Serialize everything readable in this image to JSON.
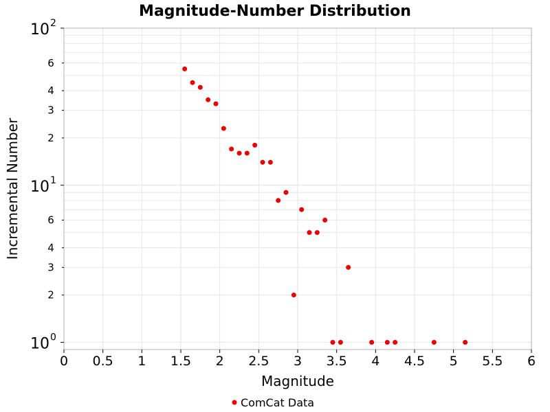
{
  "chart_data": {
    "type": "scatter",
    "title": "Magnitude-Number Distribution",
    "xlabel": "Magnitude",
    "ylabel": "Incremental Number",
    "xlim": [
      0,
      6
    ],
    "ylim": [
      0.9,
      100
    ],
    "y_scale": "log",
    "grid": true,
    "legend_position": "bottom-center",
    "x_ticks": [
      "0",
      "0.5",
      "1",
      "1.5",
      "2",
      "2.5",
      "3",
      "3.5",
      "4",
      "4.5",
      "5",
      "5.5",
      "6"
    ],
    "y_major_ticks": [
      {
        "base": "10",
        "exp": "0",
        "value": 1
      },
      {
        "base": "10",
        "exp": "1",
        "value": 10
      },
      {
        "base": "10",
        "exp": "2",
        "value": 100
      }
    ],
    "y_minor_labels": [
      {
        "label": "2",
        "value": 2
      },
      {
        "label": "3",
        "value": 3
      },
      {
        "label": "4",
        "value": 4
      },
      {
        "label": "6",
        "value": 6
      },
      {
        "label": "2",
        "value": 20
      },
      {
        "label": "3",
        "value": 30
      },
      {
        "label": "4",
        "value": 40
      },
      {
        "label": "6",
        "value": 60
      }
    ],
    "series": [
      {
        "name": "ComCat Data",
        "color": "#ee0000",
        "x": [
          1.55,
          1.65,
          1.75,
          1.85,
          1.95,
          2.05,
          2.15,
          2.25,
          2.35,
          2.45,
          2.55,
          2.65,
          2.75,
          2.85,
          2.95,
          3.05,
          3.15,
          3.25,
          3.35,
          3.45,
          3.55,
          3.65,
          3.95,
          4.15,
          4.25,
          4.75,
          5.15
        ],
        "y": [
          55,
          45,
          42,
          35,
          33,
          23,
          17,
          16,
          16,
          18,
          14,
          14,
          8,
          9,
          2,
          7,
          5,
          5,
          6,
          1,
          1,
          3,
          1,
          1,
          1,
          1,
          1
        ]
      }
    ]
  }
}
